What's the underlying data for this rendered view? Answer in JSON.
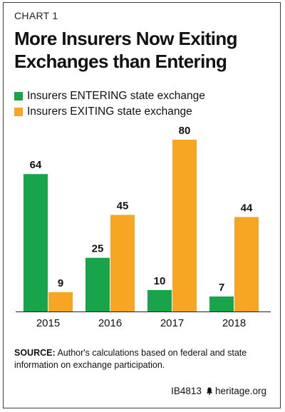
{
  "header": {
    "kicker": "CHART 1",
    "title_line1": "More Insurers Now Exiting",
    "title_line2": "Exchanges than Entering"
  },
  "legend": {
    "entering": "Insurers ENTERING state exchange",
    "exiting": "Insurers EXITING state exchange"
  },
  "colors": {
    "entering": "#17A44B",
    "exiting": "#F6A623"
  },
  "chart_data": {
    "type": "bar",
    "categories": [
      "2015",
      "2016",
      "2017",
      "2018"
    ],
    "series": [
      {
        "name": "Insurers ENTERING state exchange",
        "values": [
          64,
          25,
          10,
          7
        ]
      },
      {
        "name": "Insurers EXITING state exchange",
        "values": [
          9,
          45,
          80,
          44
        ]
      }
    ],
    "ylim": [
      0,
      80
    ],
    "grid": false,
    "legend_position": "top-left"
  },
  "source": {
    "label": "SOURCE:",
    "text": " Author's calculations based on federal and state information on exchange participation."
  },
  "footer": {
    "code": "IB4813",
    "site": "heritage.org",
    "icon": "liberty-bell-icon"
  }
}
